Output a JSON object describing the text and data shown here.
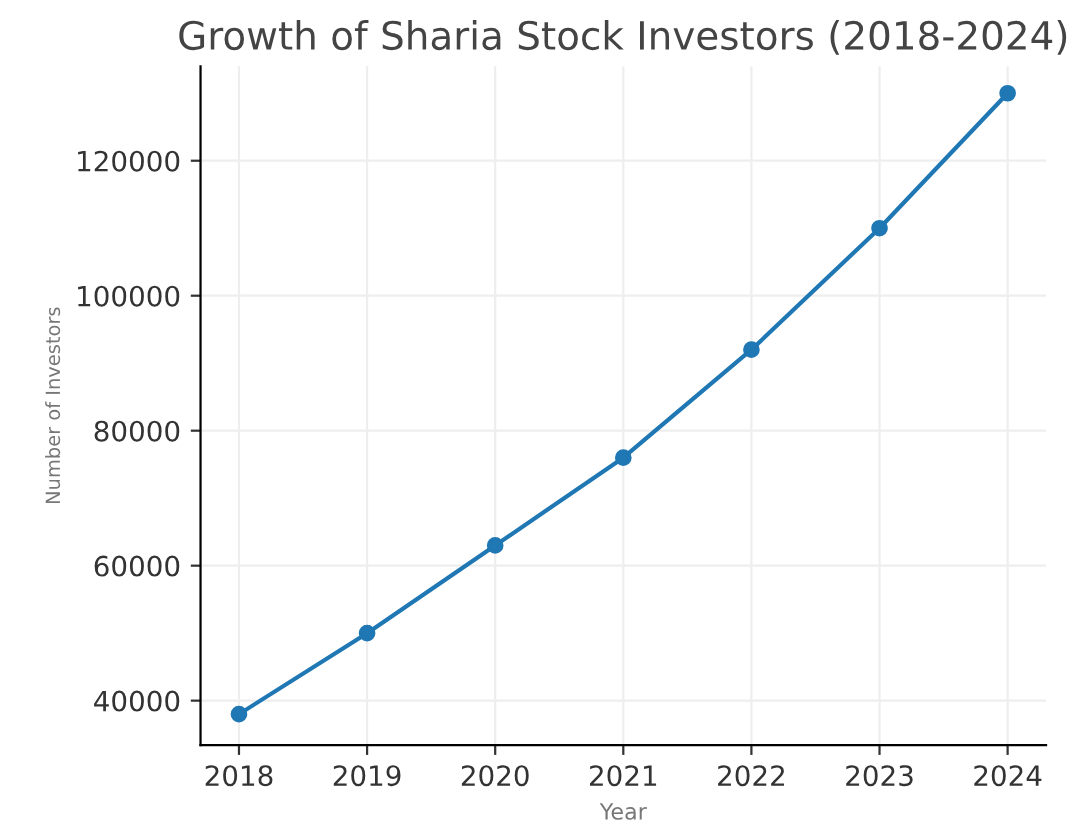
{
  "chart_data": {
    "type": "line",
    "title": "Growth of Sharia Stock Investors (2018-2024)",
    "xlabel": "Year",
    "ylabel": "Number of Investors",
    "x": [
      2018,
      2019,
      2020,
      2021,
      2022,
      2023,
      2024
    ],
    "series": [
      {
        "color": "#1f77b4",
        "values": [
          38000,
          50000,
          63000,
          76000,
          92000,
          110000,
          130000
        ]
      }
    ],
    "xlim": [
      2017.7,
      2024.3
    ],
    "xticks": [
      2018,
      2019,
      2020,
      2021,
      2022,
      2023,
      2024
    ],
    "ylim": [
      33400,
      134000
    ],
    "yticks": [
      40000,
      60000,
      80000,
      100000,
      120000
    ],
    "grid": true,
    "marker": "circle",
    "line_style": "solid"
  }
}
